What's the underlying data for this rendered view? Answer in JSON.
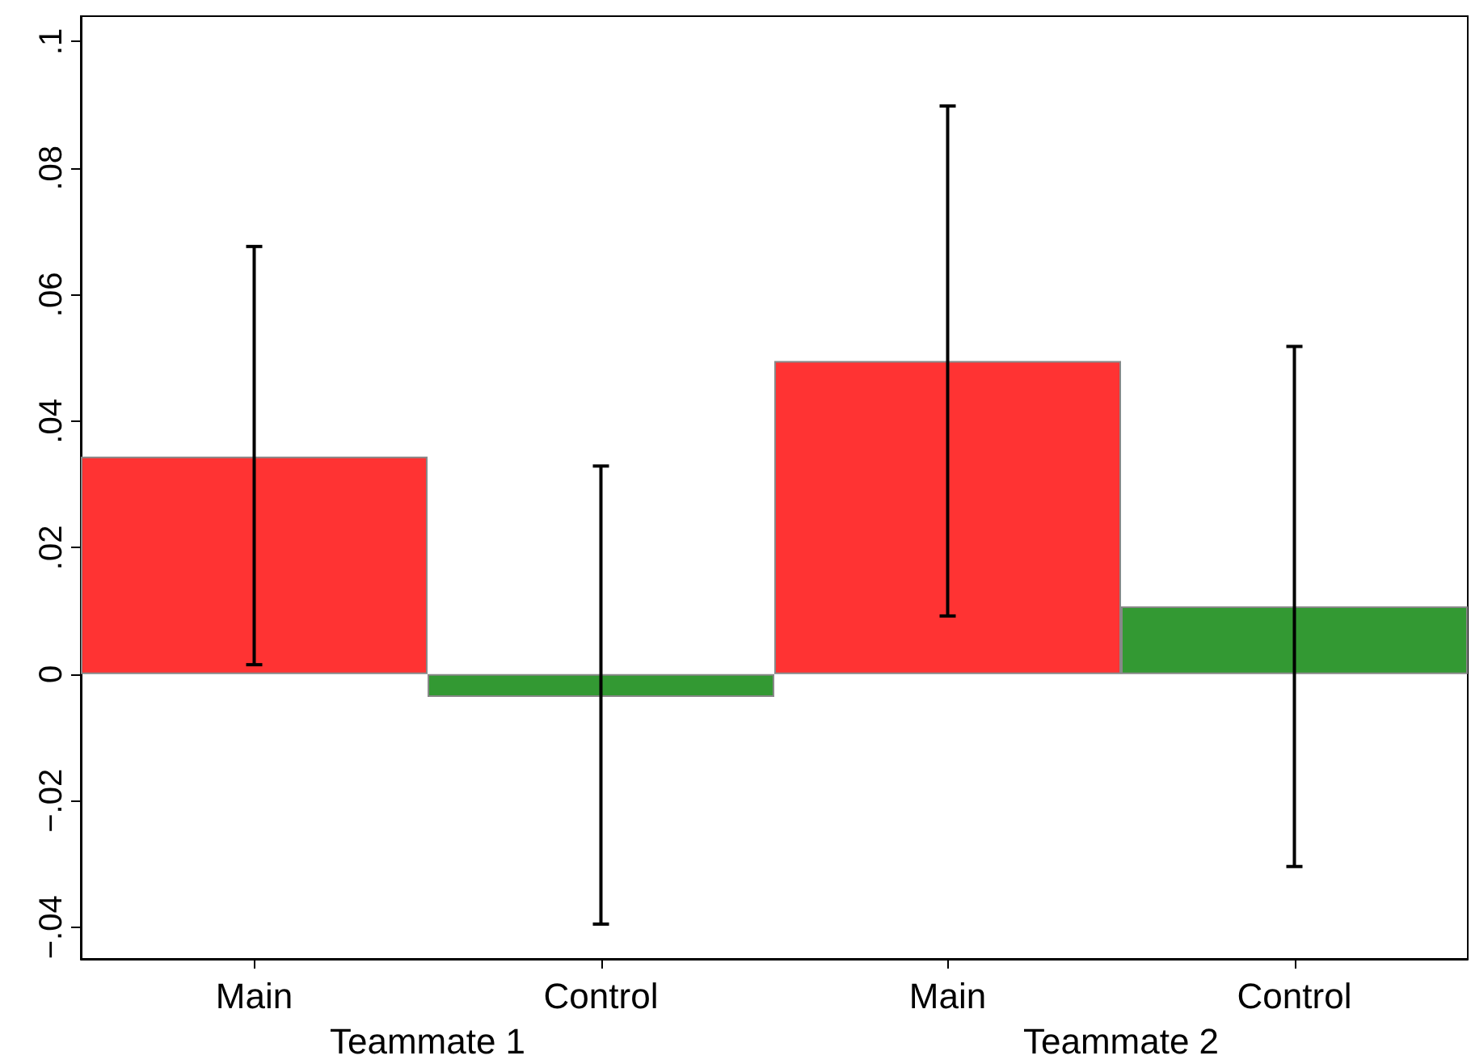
{
  "chart_data": {
    "type": "bar",
    "categories": [
      "Main",
      "Control",
      "Main",
      "Control"
    ],
    "values": [
      0.0344,
      -0.0036,
      0.0495,
      0.0107
    ],
    "colors": [
      "#ff3333",
      "#339933",
      "#ff3333",
      "#339933"
    ],
    "errors": [
      [
        0.0015,
        0.0676
      ],
      [
        -0.0395,
        0.0329
      ],
      [
        0.0092,
        0.0898
      ],
      [
        -0.0304,
        0.0518
      ]
    ],
    "ylim": [
      -0.045,
      0.104
    ],
    "yticks": [
      {
        "value": -0.04,
        "label": "−.04"
      },
      {
        "value": -0.02,
        "label": "−.02"
      },
      {
        "value": 0,
        "label": "0"
      },
      {
        "value": 0.02,
        "label": ".02"
      },
      {
        "value": 0.04,
        "label": ".04"
      },
      {
        "value": 0.06,
        "label": ".06"
      },
      {
        "value": 0.08,
        "label": ".08"
      },
      {
        "value": 0.1,
        "label": ".1"
      }
    ],
    "annotations": [
      "Teammate 1",
      "Teammate 2"
    ]
  }
}
